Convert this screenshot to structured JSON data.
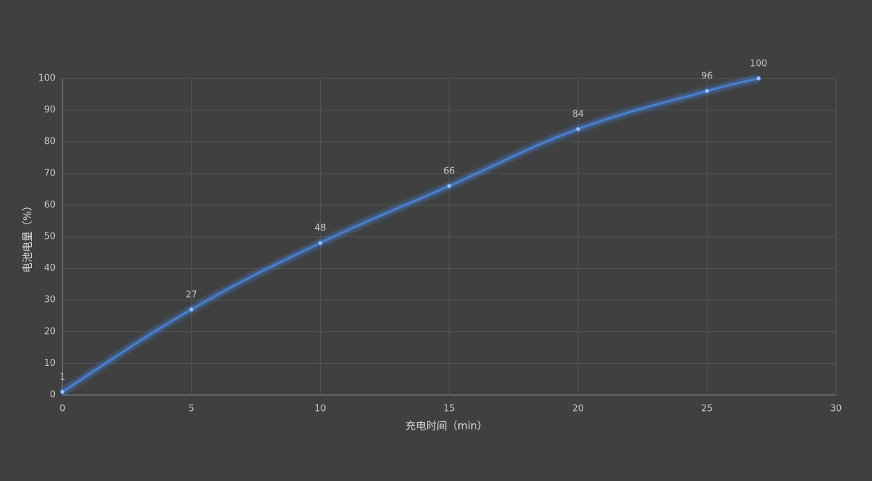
{
  "chart_data": {
    "type": "line",
    "x_label": "充电时间（min）",
    "y_label": "电池电量（%）",
    "x": [
      0,
      5,
      10,
      15,
      20,
      25,
      27
    ],
    "series": [
      {
        "color": "#4a7fd0",
        "values": [
          1,
          27,
          48,
          66,
          84,
          96,
          100
        ]
      }
    ],
    "xlim": [
      0,
      30
    ],
    "xticks": [
      0,
      5,
      10,
      15,
      20,
      25,
      30
    ],
    "ylim": [
      0,
      100
    ],
    "yticks": [
      0,
      10,
      20,
      30,
      40,
      50,
      60,
      70,
      80,
      90,
      100
    ],
    "grid": true
  }
}
